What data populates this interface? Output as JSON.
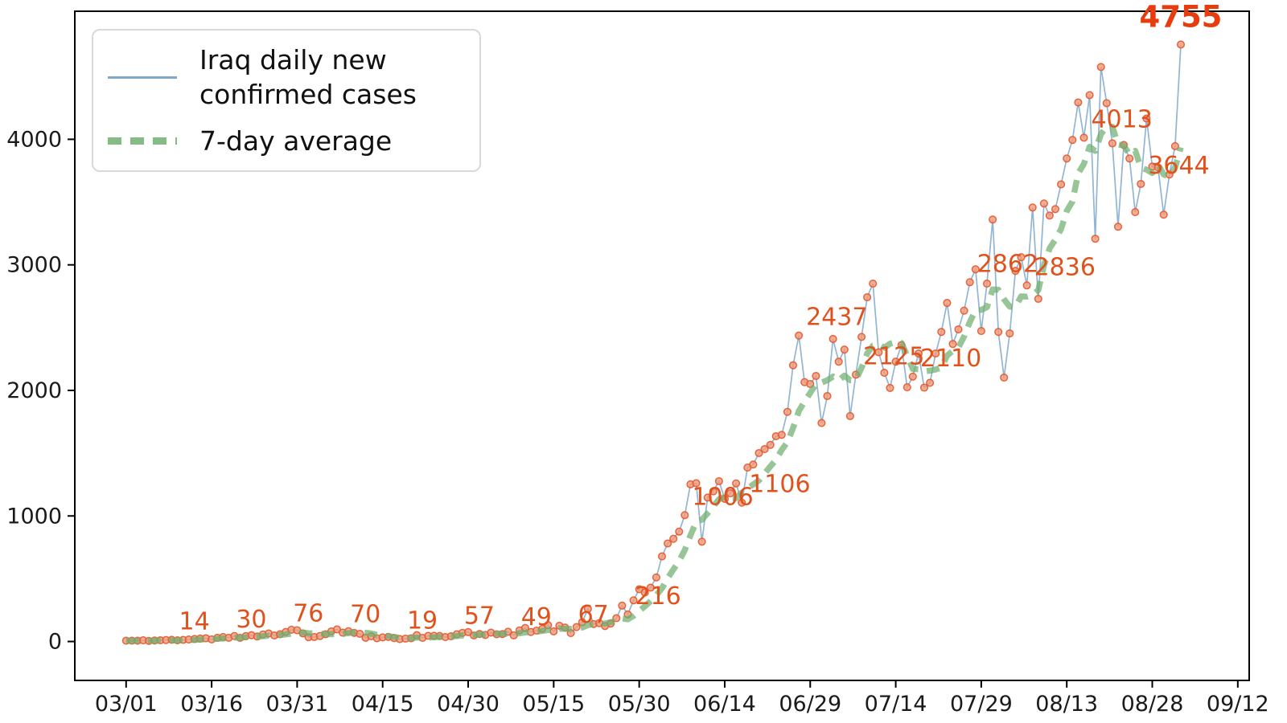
{
  "figure": {
    "background_color": "#ffffff"
  },
  "legend": {
    "position": "upper-left",
    "items": [
      {
        "label": "Iraq daily new confirmed cases",
        "swatch": "thin-blue-line",
        "color": "#7fa8cd"
      },
      {
        "label": "7-day average",
        "swatch": "thick-green-dashed-line",
        "color": "#85bc85"
      }
    ]
  },
  "chart_data": {
    "type": "line",
    "title": "",
    "xlabel": "",
    "ylabel": "",
    "grid": false,
    "x_unit": "date (MM/DD)",
    "start_date": "03/01",
    "end_date": "09/02",
    "x_ticks": [
      {
        "day": 0,
        "label": "03/01"
      },
      {
        "day": 15,
        "label": "03/16"
      },
      {
        "day": 30,
        "label": "03/31"
      },
      {
        "day": 45,
        "label": "04/15"
      },
      {
        "day": 60,
        "label": "04/30"
      },
      {
        "day": 75,
        "label": "05/15"
      },
      {
        "day": 90,
        "label": "05/30"
      },
      {
        "day": 105,
        "label": "06/14"
      },
      {
        "day": 120,
        "label": "06/29"
      },
      {
        "day": 135,
        "label": "07/14"
      },
      {
        "day": 150,
        "label": "07/29"
      },
      {
        "day": 165,
        "label": "08/13"
      },
      {
        "day": 180,
        "label": "08/28"
      },
      {
        "day": 195,
        "label": "09/12"
      }
    ],
    "y_ticks": [
      {
        "value": 0,
        "label": "0"
      },
      {
        "value": 1000,
        "label": "1000"
      },
      {
        "value": 2000,
        "label": "2000"
      },
      {
        "value": 3000,
        "label": "3000"
      },
      {
        "value": 4000,
        "label": "4000"
      }
    ],
    "xlim_days": [
      -9,
      197
    ],
    "ylim": [
      -310,
      5020
    ],
    "series": [
      {
        "name": "Iraq daily new confirmed cases",
        "style": "thin solid line with circular markers",
        "line_color": "#7fa8cd",
        "marker_edge_color": "#e4572e",
        "marker_fill_color": "#f09a78",
        "values": [
          6,
          7,
          6,
          9,
          5,
          8,
          10,
          12,
          14,
          9,
          13,
          16,
          20,
          24,
          26,
          17,
          30,
          36,
          30,
          44,
          29,
          43,
          50,
          40,
          56,
          64,
          48,
          58,
          76,
          94,
          90,
          65,
          34,
          36,
          44,
          58,
          80,
          96,
          70,
          82,
          69,
          61,
          30,
          42,
          26,
          33,
          37,
          27,
          19,
          23,
          26,
          50,
          29,
          45,
          46,
          44,
          35,
          42,
          57,
          69,
          75,
          48,
          60,
          52,
          71,
          57,
          59,
          78,
          49,
          88,
          108,
          76,
          87,
          101,
          130,
          81,
          126,
          111,
          67,
          115,
          153,
          260,
          139,
          146,
          123,
          143,
          186,
          286,
          216,
          328,
          416,
          390,
          429,
          510,
          678,
          781,
          818,
          875,
          1006,
          1252,
          1261,
          795,
          1146,
          1196,
          1277,
          1136,
          1180,
          1259,
          1106,
          1385,
          1410,
          1501,
          1533,
          1566,
          1635,
          1646,
          1829,
          2200,
          2437,
          2066,
          2051,
          2115,
          1740,
          1955,
          2410,
          2229,
          2325,
          1796,
          2125,
          2426,
          2742,
          2850,
          2304,
          2140,
          2020,
          2229,
          2361,
          2025,
          2110,
          2294,
          2022,
          2060,
          2294,
          2466,
          2697,
          2370,
          2486,
          2635,
          2862,
          2965,
          2473,
          2850,
          3361,
          2466,
          2102,
          2454,
          2952,
          3061,
          2836,
          3457,
          2729,
          3489,
          3393,
          3444,
          3641,
          3847,
          3995,
          4294,
          4013,
          4352,
          3208,
          4576,
          4288,
          3968,
          3304,
          3955,
          3847,
          3420,
          3644,
          4166,
          3783,
          3777,
          3400,
          3720,
          3946,
          4755
        ]
      },
      {
        "name": "7-day average",
        "style": "thick dashed line",
        "line_color": "#6faf6f",
        "derived": "rolling_mean_window_7_of_series_0"
      }
    ],
    "annotations": [
      {
        "index": 8,
        "label": "14",
        "bold": false
      },
      {
        "index": 18,
        "label": "30",
        "bold": false
      },
      {
        "index": 28,
        "label": "76",
        "bold": false
      },
      {
        "index": 38,
        "label": "70",
        "bold": false
      },
      {
        "index": 48,
        "label": "19",
        "bold": false
      },
      {
        "index": 58,
        "label": "57",
        "bold": false
      },
      {
        "index": 68,
        "label": "49",
        "bold": false
      },
      {
        "index": 78,
        "label": "67",
        "bold": false
      },
      {
        "index": 88,
        "label": "216",
        "bold": false
      },
      {
        "index": 98,
        "label": "1006",
        "bold": false
      },
      {
        "index": 108,
        "label": "1106",
        "bold": false
      },
      {
        "index": 118,
        "label": "2437",
        "bold": false
      },
      {
        "index": 128,
        "label": "2125",
        "bold": false
      },
      {
        "index": 138,
        "label": "2110",
        "bold": false
      },
      {
        "index": 148,
        "label": "2862",
        "bold": false
      },
      {
        "index": 158,
        "label": "2836",
        "bold": false
      },
      {
        "index": 168,
        "label": "4013",
        "bold": false
      },
      {
        "index": 178,
        "label": "3644",
        "bold": false
      },
      {
        "index": 185,
        "label": "4755",
        "bold": true
      }
    ],
    "annotation_color": "#e1511b",
    "final_annotation_color": "#e73c0d",
    "axis_color": "#000000",
    "tick_label_color": "#1a1a1a"
  }
}
